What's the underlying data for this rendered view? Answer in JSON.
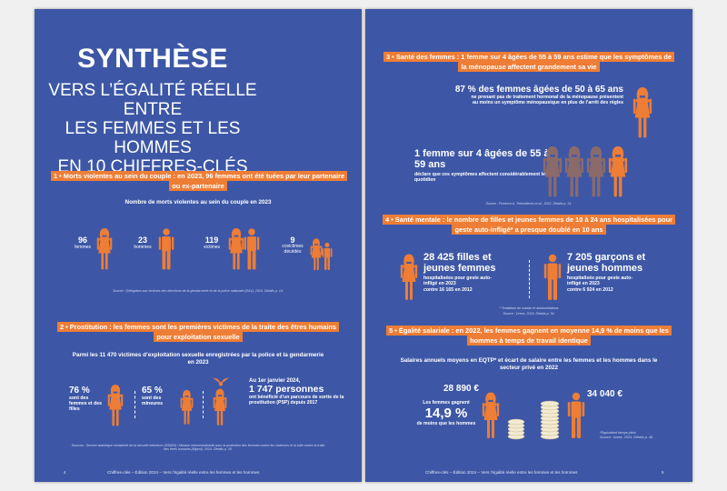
{
  "left": {
    "title": "SYNTHÈSE",
    "subtitle": [
      "VERS L’ÉGALITÉ RÉELLE ENTRE",
      "LES FEMMES ET LES HOMMES",
      "EN 10 CHIFFRES-CLÉS"
    ],
    "s1": {
      "heading": "1 • Morts violentes au sein du couple : en 2023, 96 femmes ont été tuées par leur partenaire ou ex-partenaire",
      "chart_title": "Nombre de morts violentes au sein du couple en 2023",
      "stats": [
        {
          "num": "96",
          "label": "femmes"
        },
        {
          "num": "23",
          "label": "hommes"
        },
        {
          "num": "119",
          "label": "victimes"
        },
        {
          "num": "9",
          "label": "covictimes décédés"
        }
      ],
      "source": "Source : Délégation aux victimes des directions de la gendarmerie et de la police nationale (DAV), 2024. Détails p. 14."
    },
    "s2": {
      "heading": "2 • Prostitution : les femmes sont les premières victimes de la traite des êtres humains pour exploitation sexuelle",
      "intro": "Parmi les 11 470 victimes d’exploitation sexuelle enregistrées par la police et la gendarmerie en 2023",
      "stat1_num": "76 %",
      "stat1_label": "sont des femmes et des filles",
      "stat2_num": "65 %",
      "stat2_label": "sont des mineures",
      "stat3_date": "Au 1er janvier 2024,",
      "stat3_num": "1 747 personnes",
      "stat3_label": "ont bénéficié d’un parcours de sortie de la prostitution (PSP) depuis 2017",
      "source": "Sources : Service statistique ministériel de la sécurité intérieure (SSMSI) / Mission interministérielle pour la protection des femmes contre les violences et la lutte contre la traite des êtres humains (Miprof), 2024. Détails p. 18."
    },
    "footer_page": "4",
    "footer_text": "Chiffres-clés – Édition 2024 – Vers l’égalité réelle entre les femmes et les hommes"
  },
  "right": {
    "s3": {
      "heading": "3 • Santé des femmes : 1 femme sur 4 âgées de 55 à 59 ans estime que les symptômes de la ménopause affectent grandement sa vie",
      "stat1_num": "87 % des femmes âgées de 50 à 65 ans",
      "stat1_label": "ne prenant pas de traitement hormonal de la ménopause présentent au moins un symptôme ménopausique en plus de l’arrêt des règles",
      "stat2_num": "1 femme sur 4 âgées de 55 à 59 ans",
      "stat2_label": "déclare que ces symptômes affectent considérablement leur quotidien",
      "source": "Source : Florence A. Trémollieres et al., 2022. Détails p. 31."
    },
    "s4": {
      "heading": "4 • Santé mentale : le nombre de filles et jeunes femmes de 10 à 24 ans hospitalisées pour geste auto-infligé* a presque doublé en 10 ans",
      "girls_num": "28 425 filles et jeunes femmes",
      "girls_label": "hospitalisées pour geste auto-infligé en 2023",
      "girls_prev": "contre 16 165 en 2012",
      "boys_num": "7 205 garçons et jeunes hommes",
      "boys_label": "hospitalisés pour geste auto-infligé en 2023",
      "boys_prev": "contre 6 924 en 2012",
      "note": "* Tentatives de suicide et automutilations",
      "source": "Source : Drees, 2024. Détails p. 34."
    },
    "s5": {
      "heading": "5 • Égalité salariale : en 2022, les femmes gagnent en moyenne 14,9 % de moins que les hommes à temps de travail identique",
      "intro": "Salaires annuels moyens en EQTP* et écart de salaire entre les femmes et les hommes dans le secteur privé en 2022",
      "women_salary": "28 890 €",
      "men_salary": "34 040 €",
      "gap_pre": "Les femmes gagnent",
      "gap_num": "14,9 %",
      "gap_post": "de moins que les hommes",
      "note": "*Équivalent temps plein",
      "source": "Source : Insee, 2024. Détails p. 46."
    },
    "footer_page": "5",
    "footer_text": "Chiffres-clés – Édition 2024 – Vers l’égalité réelle entre les femmes et les hommes"
  },
  "colors": {
    "page_bg": "#3d57a6",
    "accent": "#ee7d35",
    "muted_figure": "#8b6a6a"
  }
}
